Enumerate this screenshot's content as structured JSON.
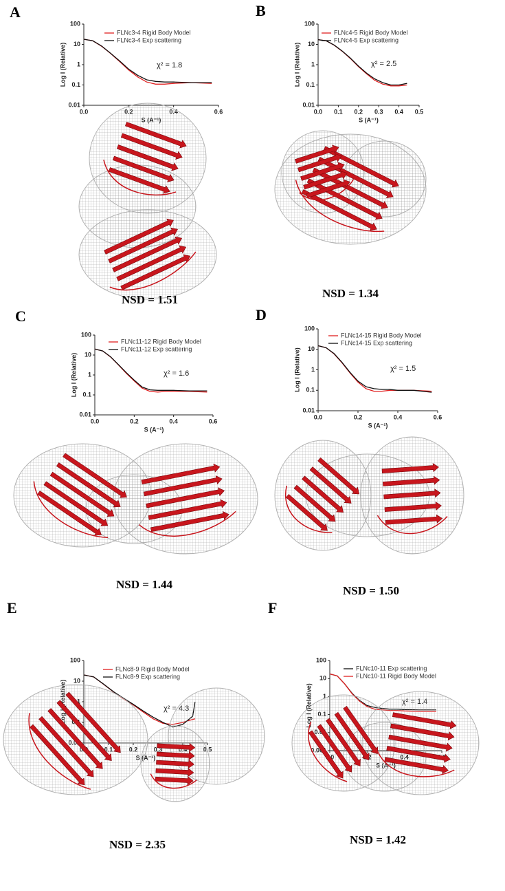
{
  "chart_data": [
    {
      "type": "line",
      "panel": "A",
      "ylabel": "Log I (Relative)",
      "xlabel": "S (A⁻¹)",
      "annotation": "χ² = 1.8",
      "caption": "NSD = 1.51",
      "log_y": true,
      "xlim": [
        0,
        0.6
      ],
      "xticks": [
        {
          "value": 0,
          "label": "0.0"
        },
        0.2,
        0.4,
        0.6
      ],
      "ylim": [
        0.01,
        100
      ],
      "yticks": [
        0.01,
        0.1,
        1,
        10,
        100
      ],
      "x": [
        0,
        0.04,
        0.08,
        0.12,
        0.16,
        0.2,
        0.24,
        0.28,
        0.32,
        0.36,
        0.4,
        0.48,
        0.57
      ],
      "series": [
        {
          "name": "FLNc3-4 Rigid Body Model",
          "color": "#e02020",
          "values": [
            18,
            15,
            8,
            3.5,
            1.4,
            0.55,
            0.25,
            0.14,
            0.11,
            0.11,
            0.12,
            0.13,
            0.12
          ]
        },
        {
          "name": "FLNc3-4 Exp scattering",
          "color": "#111111",
          "values": [
            18,
            15,
            8.2,
            3.6,
            1.5,
            0.6,
            0.3,
            0.18,
            0.15,
            0.14,
            0.14,
            0.13,
            0.13
          ]
        }
      ]
    },
    {
      "type": "line",
      "panel": "B",
      "ylabel": "Log I (Relative)",
      "xlabel": "S (A⁻¹)",
      "annotation": "χ² = 2.5",
      "caption": "NSD =  1.34",
      "log_y": true,
      "xlim": [
        0,
        0.5
      ],
      "xticks": [
        {
          "value": 0,
          "label": "0.0"
        },
        0.1,
        0.2,
        0.3,
        0.4,
        0.5
      ],
      "ylim": [
        0.01,
        100
      ],
      "yticks": [
        0.01,
        0.1,
        1,
        10,
        100
      ],
      "x": [
        0,
        0.04,
        0.08,
        0.12,
        0.16,
        0.2,
        0.24,
        0.28,
        0.32,
        0.36,
        0.4,
        0.44
      ],
      "series": [
        {
          "name": "FLNc4-5 Rigid Body Model",
          "color": "#e02020",
          "values": [
            17,
            15,
            9,
            4.5,
            2,
            0.8,
            0.35,
            0.17,
            0.11,
            0.09,
            0.09,
            0.1
          ]
        },
        {
          "name": "FLNc4-5 Exp scattering",
          "color": "#111111",
          "values": [
            17,
            15,
            9.2,
            4.6,
            2.1,
            0.85,
            0.38,
            0.2,
            0.13,
            0.1,
            0.1,
            0.12
          ]
        }
      ]
    },
    {
      "type": "line",
      "panel": "C",
      "ylabel": "Log I (Relative)",
      "xlabel": "S (A⁻¹)",
      "annotation": "χ² = 1.6",
      "caption": "NSD = 1.44",
      "log_y": true,
      "xlim": [
        0,
        0.6
      ],
      "xticks": [
        {
          "value": 0,
          "label": "0.0"
        },
        0.2,
        0.4,
        0.6
      ],
      "ylim": [
        0.01,
        100
      ],
      "yticks": [
        0.01,
        0.1,
        1,
        10,
        100
      ],
      "x": [
        0,
        0.04,
        0.08,
        0.12,
        0.16,
        0.2,
        0.24,
        0.28,
        0.32,
        0.36,
        0.4,
        0.48,
        0.57
      ],
      "series": [
        {
          "name": "FLNc11-12 Rigid Body Model",
          "color": "#e02020",
          "values": [
            20,
            16,
            8,
            3.2,
            1.2,
            0.5,
            0.22,
            0.15,
            0.14,
            0.15,
            0.15,
            0.15,
            0.14
          ]
        },
        {
          "name": "FLNc11-12 Exp scattering",
          "color": "#111111",
          "values": [
            20,
            16,
            8.2,
            3.3,
            1.3,
            0.55,
            0.25,
            0.18,
            0.17,
            0.17,
            0.17,
            0.16,
            0.16
          ]
        }
      ]
    },
    {
      "type": "line",
      "panel": "D",
      "ylabel": "Log I (Relative)",
      "xlabel": "S (A⁻¹)",
      "annotation": "χ² = 1.5",
      "caption": "NSD = 1.50",
      "log_y": true,
      "xlim": [
        0,
        0.6
      ],
      "xticks": [
        {
          "value": 0,
          "label": "0.0"
        },
        0.2,
        0.4,
        0.6
      ],
      "ylim": [
        0.01,
        100
      ],
      "yticks": [
        0.01,
        0.1,
        1,
        10,
        100
      ],
      "x": [
        0,
        0.04,
        0.08,
        0.12,
        0.16,
        0.2,
        0.24,
        0.28,
        0.32,
        0.36,
        0.4,
        0.48,
        0.57
      ],
      "series": [
        {
          "name": "FLNc14-15  Rigid Body Model",
          "color": "#e02020",
          "values": [
            15,
            12,
            6,
            2.2,
            0.7,
            0.25,
            0.12,
            0.09,
            0.09,
            0.1,
            0.1,
            0.1,
            0.09
          ]
        },
        {
          "name": "FLNc14-15 Exp scattering",
          "color": "#111111",
          "values": [
            15,
            12,
            6.2,
            2.3,
            0.75,
            0.28,
            0.15,
            0.12,
            0.11,
            0.11,
            0.1,
            0.1,
            0.08
          ]
        }
      ]
    },
    {
      "type": "line",
      "panel": "E",
      "ylabel": "Log I (Relative)",
      "xlabel": "S (A⁻¹)",
      "annotation": "χ² = 4.3",
      "caption": "NSD = 2.35",
      "log_y": true,
      "xlim": [
        0,
        0.5
      ],
      "xticks": [
        {
          "value": 0,
          "label": "0.0"
        },
        0.1,
        0.2,
        0.3,
        0.4,
        0.5
      ],
      "ylim": [
        0.01,
        100
      ],
      "yticks": [
        0.01,
        0.1,
        1,
        10,
        100
      ],
      "x": [
        0,
        0.04,
        0.08,
        0.12,
        0.16,
        0.2,
        0.24,
        0.28,
        0.32,
        0.36,
        0.4,
        0.44,
        0.45
      ],
      "series": [
        {
          "name": "FLNc8-9 Rigid Body Model",
          "color": "#e02020",
          "values": [
            20,
            16,
            7,
            3,
            1.4,
            0.7,
            0.32,
            0.15,
            0.09,
            0.08,
            0.1,
            0.14,
            0.15
          ]
        },
        {
          "name": "FLNc8-9 Exp scattering",
          "color": "#111111",
          "values": [
            20,
            16,
            7.2,
            3.1,
            1.5,
            0.75,
            0.36,
            0.18,
            0.1,
            0.06,
            0.08,
            0.2,
            1
          ]
        }
      ]
    },
    {
      "type": "line",
      "panel": "F",
      "ylabel": "Log I (Relative)",
      "xlabel": "S (A⁻¹)",
      "annotation": "χ² = 1.4",
      "caption": "NSD = 1.42",
      "log_y": true,
      "xlim": [
        0,
        0.6
      ],
      "xticks": [
        {
          "value": 0,
          "label": "0.0"
        },
        0.2,
        0.4,
        0.6
      ],
      "ylim": [
        0.001,
        100
      ],
      "yticks": [
        0.001,
        0.01,
        0.1,
        1,
        10,
        100
      ],
      "x": [
        0,
        0.04,
        0.08,
        0.12,
        0.16,
        0.2,
        0.24,
        0.28,
        0.32,
        0.36,
        0.4,
        0.48,
        0.57
      ],
      "series": [
        {
          "name": "FLNc10-11 Exp scattering",
          "color": "#111111",
          "values": [
            18,
            14,
            5,
            1.5,
            0.6,
            0.32,
            0.25,
            0.22,
            0.2,
            0.2,
            0.19,
            0.18,
            0.18
          ]
        },
        {
          "name": "FLNc10-11 Rigid Body Model",
          "color": "#e02020",
          "values": [
            18,
            14,
            5,
            1.4,
            0.55,
            0.28,
            0.2,
            0.18,
            0.17,
            0.17,
            0.16,
            0.15,
            0.15
          ]
        }
      ]
    }
  ]
}
